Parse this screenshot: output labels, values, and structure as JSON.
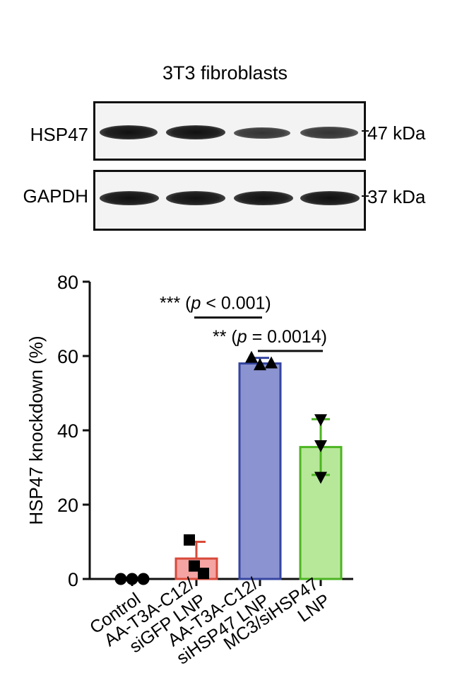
{
  "blot": {
    "title": "3T3 fibroblasts",
    "rows": [
      {
        "label": "HSP47",
        "size": "47 kDa",
        "intensity": [
          1.0,
          1.0,
          0.75,
          0.8
        ]
      },
      {
        "label": "GAPDH",
        "size": "37 kDa",
        "intensity": [
          1.0,
          1.0,
          1.0,
          1.0
        ]
      }
    ]
  },
  "chart_data": {
    "type": "bar",
    "ylabel": "HSP47 knockdown (%)",
    "xlabel": "",
    "ylim": [
      0,
      80
    ],
    "yticks": [
      0,
      20,
      40,
      60,
      80
    ],
    "categories": [
      "Control",
      "AA-T3A-C12/\nsiGFP LNP",
      "AA-T3A-C12/\nsiHSP47 LNP",
      "MC3/siHSP47\nLNP"
    ],
    "values": [
      0,
      5.5,
      58,
      35.5
    ],
    "errors": [
      0,
      4.5,
      1.5,
      7.5
    ],
    "points": [
      [
        0,
        0,
        0
      ],
      [
        10.5,
        1.5,
        3.5
      ],
      [
        59.5,
        57.5,
        58
      ],
      [
        43,
        36,
        27.5
      ]
    ],
    "markers": [
      "circle",
      "square",
      "triangle-up",
      "triangle-down"
    ],
    "fill_colors": [
      "#ffffff",
      "#f5a3a3",
      "#8b93d1",
      "#b7e89a"
    ],
    "edge_colors": [
      "#000000",
      "#d84a3a",
      "#3545a0",
      "#4cb521"
    ],
    "annotations": [
      {
        "stars": "***",
        "text": " (p < 0.001)",
        "from": 1,
        "to": 2,
        "y": 71.5
      },
      {
        "stars": "**",
        "text": " (p = 0.0014)",
        "from": 2,
        "to": 3,
        "y": 62.5
      }
    ]
  }
}
